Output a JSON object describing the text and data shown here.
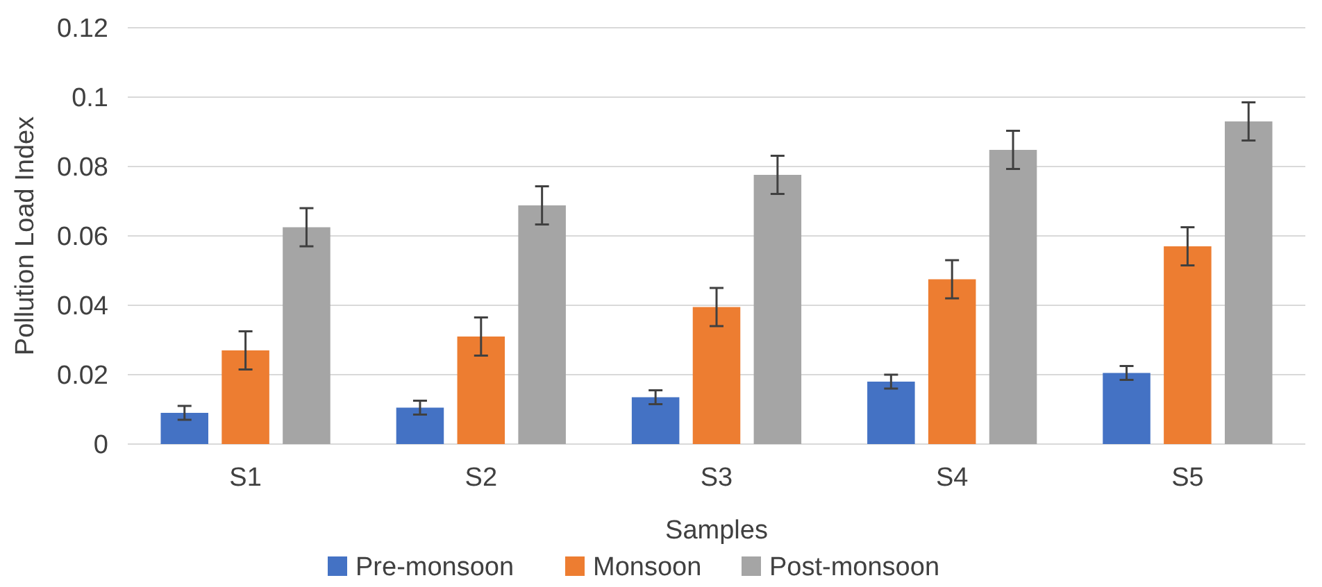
{
  "chart_data": {
    "type": "bar",
    "xlabel": "Samples",
    "ylabel": "Pollution Load Index",
    "categories": [
      "S1",
      "S2",
      "S3",
      "S4",
      "S5"
    ],
    "series": [
      {
        "name": "Pre-monsoon",
        "color": "#4472c4",
        "values": [
          0.009,
          0.0105,
          0.0135,
          0.018,
          0.0205
        ],
        "errors": [
          0.002,
          0.002,
          0.002,
          0.002,
          0.002
        ]
      },
      {
        "name": "Monsoon",
        "color": "#ed7d31",
        "values": [
          0.027,
          0.031,
          0.0395,
          0.0475,
          0.057
        ],
        "errors": [
          0.0055,
          0.0055,
          0.0055,
          0.0055,
          0.0055
        ]
      },
      {
        "name": "Post-monsoon",
        "color": "#a5a5a5",
        "values": [
          0.0625,
          0.0688,
          0.0776,
          0.0848,
          0.093
        ],
        "errors": [
          0.0055,
          0.0055,
          0.0055,
          0.0055,
          0.0055
        ]
      }
    ],
    "ylim": [
      0,
      0.12
    ],
    "yticks": [
      0,
      0.02,
      0.04,
      0.06,
      0.08,
      0.1,
      0.12
    ],
    "grid": "y",
    "legend": "bottom"
  }
}
